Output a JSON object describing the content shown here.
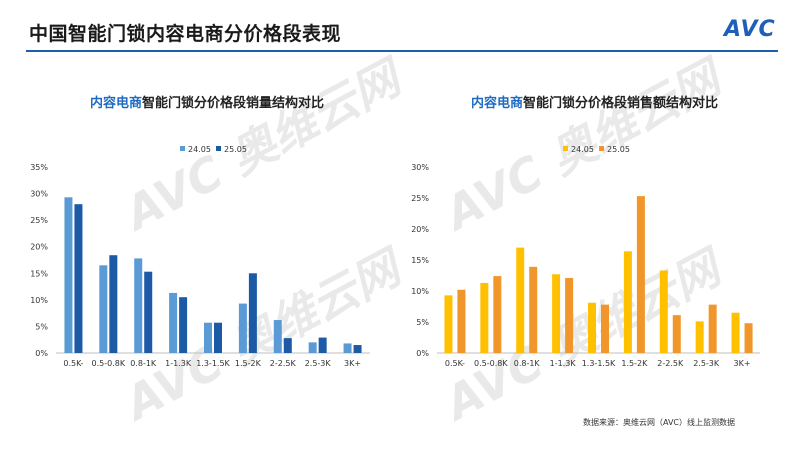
{
  "page": {
    "title": "中国智能门锁内容电商分价格段表现",
    "logo": "AVC",
    "source": "数据来源：奥维云网（AVC）线上监测数据",
    "watermark_text": "AVC 奥维云网",
    "accent_color": "#1f5ea8",
    "logo_color": "#1e5fb8"
  },
  "chart_data": [
    {
      "type": "bar",
      "title_highlight": "内容电商",
      "title_rest": "智能门锁分价格段销量结构对比",
      "categories": [
        "0.5K-",
        "0.5-0.8K",
        "0.8-1K",
        "1-1.3K",
        "1.3-1.5K",
        "1.5-2K",
        "2-2.5K",
        "2.5-3K",
        "3K+"
      ],
      "series": [
        {
          "name": "24.05",
          "color": "#5b9bd5",
          "values": [
            29.3,
            16.5,
            17.8,
            11.3,
            5.7,
            9.3,
            6.2,
            2.0,
            1.8
          ]
        },
        {
          "name": "25.05",
          "color": "#1c5aa6",
          "values": [
            28.0,
            18.4,
            15.3,
            10.5,
            5.7,
            15.0,
            2.8,
            2.9,
            1.5
          ]
        }
      ],
      "yticks": [
        "0%",
        "5%",
        "10%",
        "15%",
        "20%",
        "25%",
        "30%",
        "35%"
      ],
      "ylim": [
        0,
        35
      ],
      "legend_position": "top-center"
    },
    {
      "type": "bar",
      "title_highlight": "内容电商",
      "title_rest": "智能门锁分价格段销售额结构对比",
      "categories": [
        "0.5K-",
        "0.5-0.8K",
        "0.8-1K",
        "1-1.3K",
        "1.3-1.5K",
        "1.5-2K",
        "2-2.5K",
        "2.5-3K",
        "3K+"
      ],
      "series": [
        {
          "name": "24.05",
          "color": "#ffc000",
          "values": [
            9.3,
            11.3,
            17.0,
            12.7,
            8.1,
            16.4,
            13.3,
            5.1,
            6.5
          ]
        },
        {
          "name": "25.05",
          "color": "#f0962a",
          "values": [
            10.2,
            12.4,
            13.9,
            12.1,
            7.8,
            25.3,
            6.1,
            7.8,
            4.8
          ]
        }
      ],
      "yticks": [
        "0%",
        "5%",
        "10%",
        "15%",
        "20%",
        "25%",
        "30%"
      ],
      "ylim": [
        0,
        30
      ],
      "legend_position": "top-center"
    }
  ]
}
